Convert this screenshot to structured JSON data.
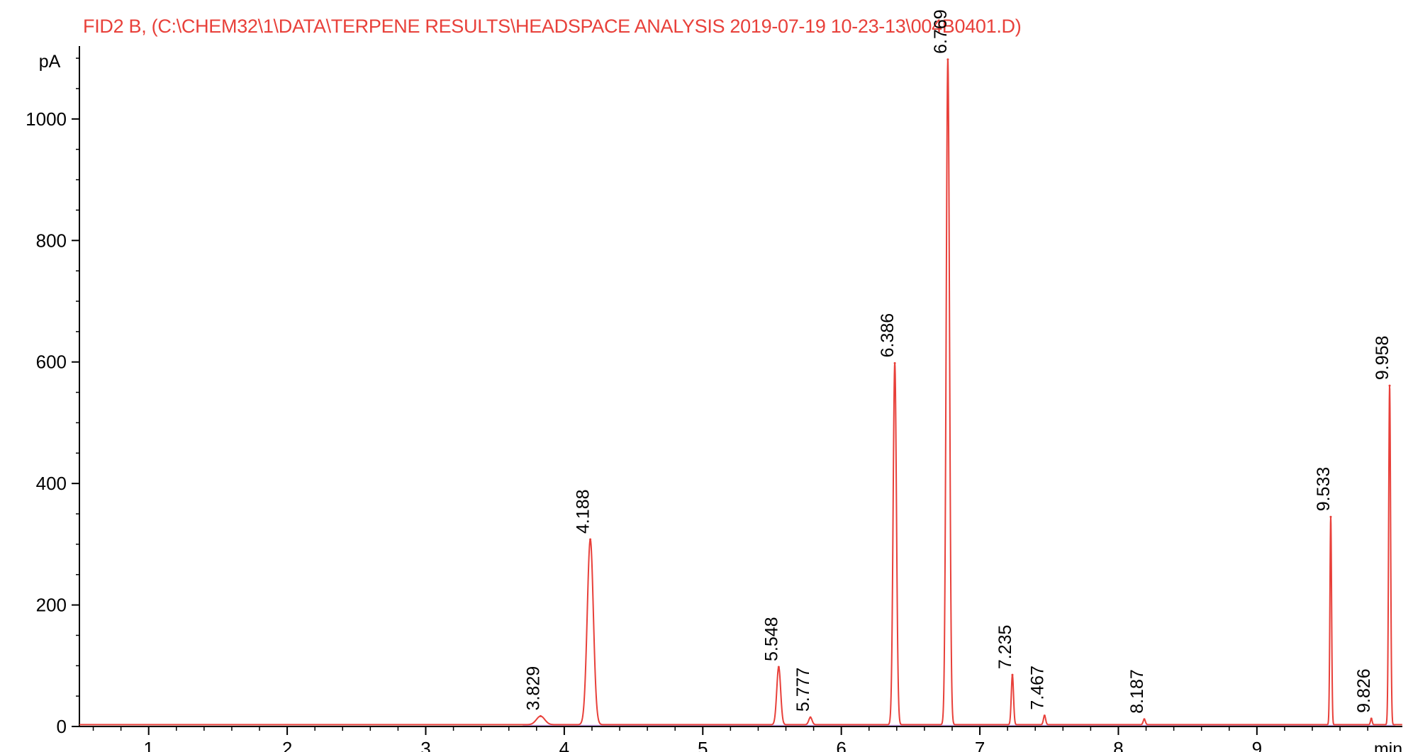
{
  "title": "FID2 B,  (C:\\CHEM32\\1\\DATA\\TERPENE RESULTS\\HEADSPACE ANALYSIS 2019-07-19 10-23-13\\004B0401.D)",
  "colors": {
    "title": "#e8403a",
    "trace": "#e8403a",
    "baseline": "#b070e0",
    "axis": "#000000"
  },
  "chart_data": {
    "type": "line",
    "title": "FID2 B,  (C:\\CHEM32\\1\\DATA\\TERPENE RESULTS\\HEADSPACE ANALYSIS 2019-07-19 10-23-13\\004B0401.D)",
    "xlabel": "min",
    "ylabel": "pA",
    "xlim": [
      0.5,
      10.05
    ],
    "ylim": [
      0,
      1120
    ],
    "x_ticks": [
      1,
      2,
      3,
      4,
      5,
      6,
      7,
      8,
      9
    ],
    "y_ticks": [
      0,
      200,
      400,
      600,
      800,
      1000
    ],
    "grid": false,
    "peaks": [
      {
        "rt": 3.829,
        "label": "3.829",
        "height": 14,
        "width": 0.03
      },
      {
        "rt": 4.188,
        "label": "4.188",
        "height": 305,
        "width": 0.022
      },
      {
        "rt": 5.548,
        "label": "5.548",
        "height": 95,
        "width": 0.014
      },
      {
        "rt": 5.777,
        "label": "5.777",
        "height": 12,
        "width": 0.012
      },
      {
        "rt": 6.386,
        "label": "6.386",
        "height": 595,
        "width": 0.012
      },
      {
        "rt": 6.769,
        "label": "6.769",
        "height": 1095,
        "width": 0.012
      },
      {
        "rt": 7.235,
        "label": "7.235",
        "height": 82,
        "width": 0.008
      },
      {
        "rt": 7.467,
        "label": "7.467",
        "height": 15,
        "width": 0.008
      },
      {
        "rt": 8.187,
        "label": "8.187",
        "height": 9,
        "width": 0.008
      },
      {
        "rt": 9.533,
        "label": "9.533",
        "height": 342,
        "width": 0.006
      },
      {
        "rt": 9.826,
        "label": "9.826",
        "height": 10,
        "width": 0.006
      },
      {
        "rt": 9.958,
        "label": "9.958",
        "height": 558,
        "width": 0.007
      }
    ]
  }
}
